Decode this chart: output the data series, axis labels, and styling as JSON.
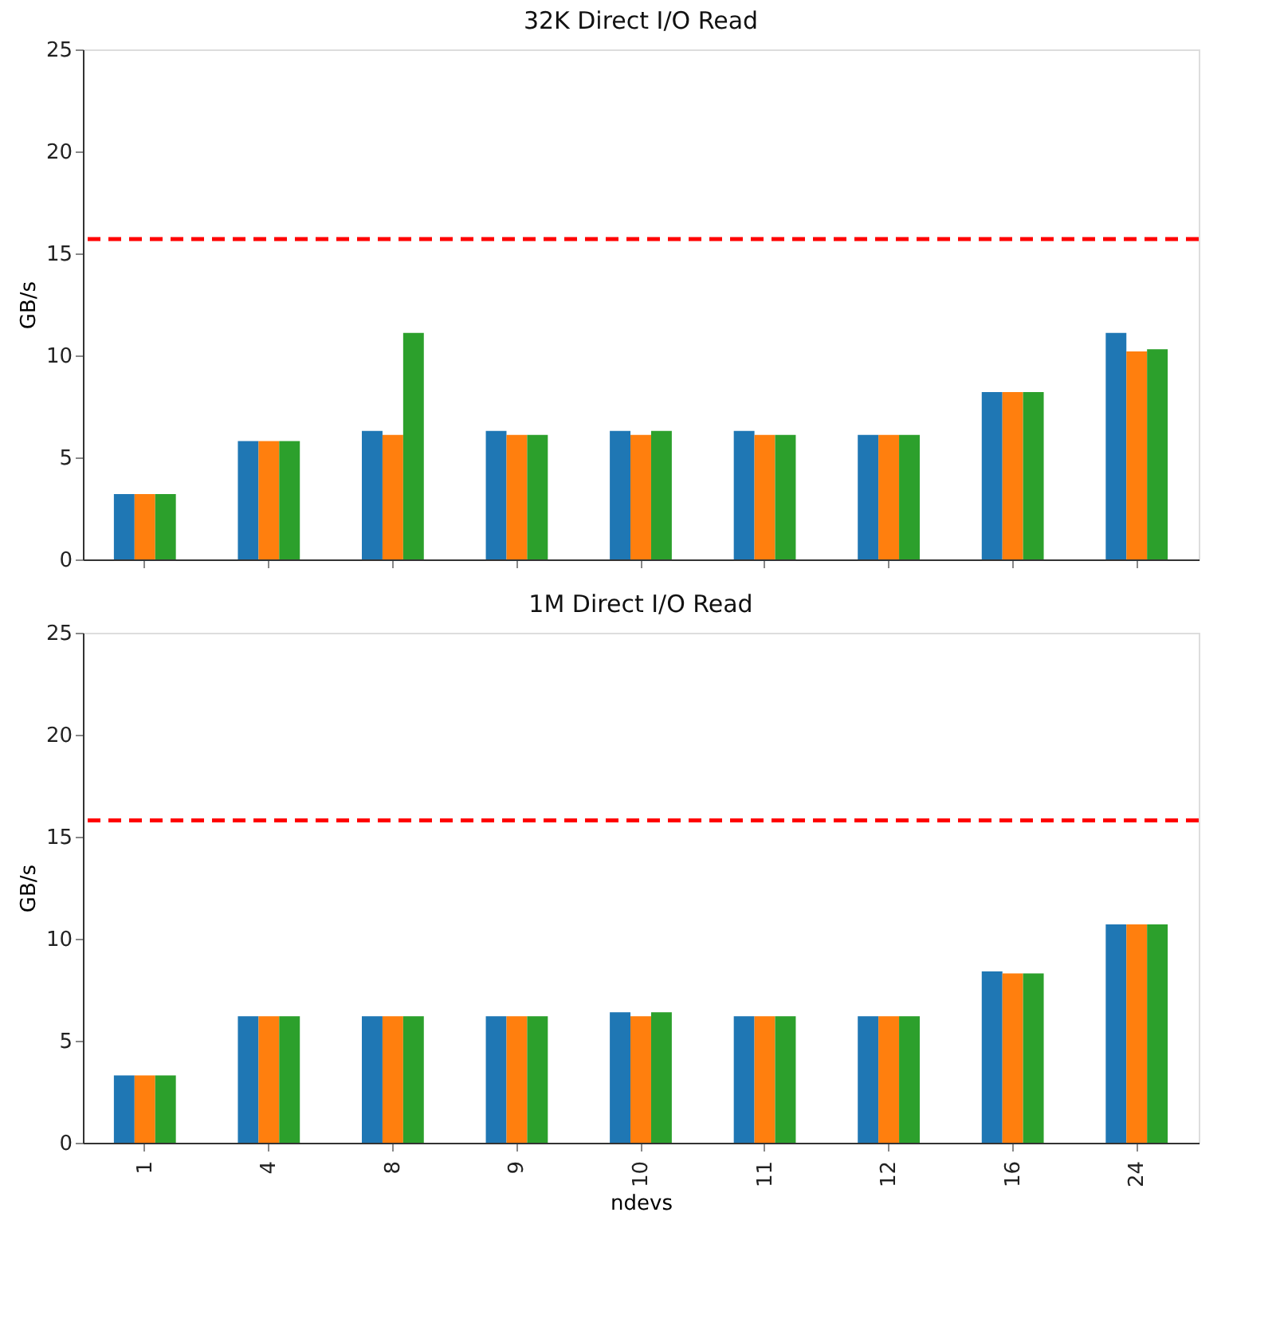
{
  "chart_data": [
    {
      "type": "bar",
      "title": "32K Direct I/O Read",
      "ylabel": "GB/s",
      "categories": [
        "1",
        "4",
        "8",
        "9",
        "10",
        "11",
        "12",
        "16",
        "24"
      ],
      "series": [
        {
          "color": "#1f77b4",
          "values": [
            3.2,
            5.8,
            6.3,
            6.3,
            6.3,
            6.3,
            6.1,
            8.2,
            11.1
          ]
        },
        {
          "color": "#ff7f0e",
          "values": [
            3.2,
            5.8,
            6.1,
            6.1,
            6.1,
            6.1,
            6.1,
            8.2,
            10.2
          ]
        },
        {
          "color": "#2ca02c",
          "values": [
            3.2,
            5.8,
            11.1,
            6.1,
            6.3,
            6.1,
            6.1,
            8.2,
            10.3
          ]
        }
      ],
      "ylim": [
        0,
        25
      ],
      "yticks": [
        0,
        5,
        10,
        15,
        20,
        25
      ],
      "tick_labels": "y",
      "grid": false,
      "legend": false,
      "ref_lines": [
        {
          "axis": "y",
          "value": 15.7,
          "color": "#ff0000",
          "line_style": "dashed"
        }
      ]
    },
    {
      "type": "bar",
      "title": "1M Direct I/O Read",
      "xlabel": "ndevs",
      "ylabel": "GB/s",
      "categories": [
        "1",
        "4",
        "8",
        "9",
        "10",
        "11",
        "12",
        "16",
        "24"
      ],
      "series": [
        {
          "color": "#1f77b4",
          "values": [
            3.3,
            6.2,
            6.2,
            6.2,
            6.4,
            6.2,
            6.2,
            8.4,
            10.7
          ]
        },
        {
          "color": "#ff7f0e",
          "values": [
            3.3,
            6.2,
            6.2,
            6.2,
            6.2,
            6.2,
            6.2,
            8.3,
            10.7
          ]
        },
        {
          "color": "#2ca02c",
          "values": [
            3.3,
            6.2,
            6.2,
            6.2,
            6.4,
            6.2,
            6.2,
            8.3,
            10.7
          ]
        }
      ],
      "ylim": [
        0,
        25
      ],
      "yticks": [
        0,
        5,
        10,
        15,
        20,
        25
      ],
      "grid": false,
      "legend": false,
      "ref_lines": [
        {
          "axis": "y",
          "value": 15.8,
          "color": "#ff0000",
          "line_style": "dashed"
        }
      ]
    }
  ]
}
